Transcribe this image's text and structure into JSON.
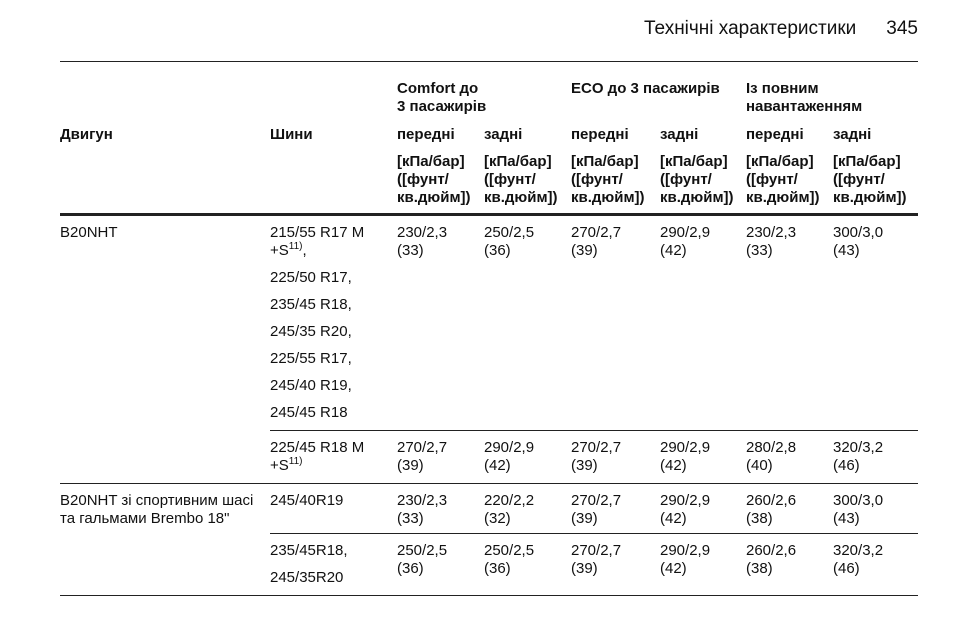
{
  "header": {
    "title": "Технічні характеристики",
    "page": "345"
  },
  "table": {
    "group_headers": [
      [
        "Comfort до",
        "3 пасажирів"
      ],
      [
        "ECO до 3 пасажирів"
      ],
      [
        "Із повним",
        "навантаженням"
      ]
    ],
    "columns": [
      "Двигун",
      "Шини",
      "передні",
      "задні",
      "передні",
      "задні",
      "передні",
      "задні"
    ],
    "units": [
      [
        "[кПа/бар]",
        "([фунт/",
        "кв.дюйм])"
      ],
      [
        "[кПа/бар]",
        "([фунт/",
        "кв.дюйм])"
      ],
      [
        "[кПа/бар]",
        "([фунт/",
        "кв.дюйм])"
      ],
      [
        "[кПа/бар]",
        "([фунт/",
        "кв.дюйм])"
      ],
      [
        "[кПа/бар]",
        "([фунт/",
        "кв.дюйм])"
      ],
      [
        "[кПа/бар]",
        "([фунт/",
        "кв.дюйм])"
      ]
    ],
    "rows": [
      {
        "engine": [
          "B20NHT"
        ],
        "tyres": [
          {
            "text": [
              "215/55 R17 M",
              "+S"
            ],
            "note": "11)",
            "suffix": ","
          },
          {
            "text": [
              "225/50 R17,"
            ]
          },
          {
            "text": [
              "235/45 R18,"
            ]
          },
          {
            "text": [
              "245/35 R20,"
            ]
          },
          {
            "text": [
              "225/55 R17,"
            ]
          },
          {
            "text": [
              "245/40 R19,"
            ]
          },
          {
            "text": [
              "245/45 R18"
            ]
          }
        ],
        "values": [
          [
            "230/2,3",
            "(33)"
          ],
          [
            "250/2,5",
            "(36)"
          ],
          [
            "270/2,7",
            "(39)"
          ],
          [
            "290/2,9",
            "(42)"
          ],
          [
            "230/2,3",
            "(33)"
          ],
          [
            "300/3,0",
            "(43)"
          ]
        ]
      },
      {
        "tyres": [
          {
            "text": [
              "225/45 R18 M",
              "+S"
            ],
            "note": "11)"
          }
        ],
        "values": [
          [
            "270/2,7",
            "(39)"
          ],
          [
            "290/2,9",
            "(42)"
          ],
          [
            "270/2,7",
            "(39)"
          ],
          [
            "290/2,9",
            "(42)"
          ],
          [
            "280/2,8",
            "(40)"
          ],
          [
            "320/3,2",
            "(46)"
          ]
        ]
      },
      {
        "engine": [
          "B20NHT зі спортивним шасі",
          "та гальмами Brembo 18\""
        ],
        "tyres": [
          {
            "text": [
              "245/40R19"
            ]
          }
        ],
        "values": [
          [
            "230/2,3",
            "(33)"
          ],
          [
            "220/2,2",
            "(32)"
          ],
          [
            "270/2,7",
            "(39)"
          ],
          [
            "290/2,9",
            "(42)"
          ],
          [
            "260/2,6",
            "(38)"
          ],
          [
            "300/3,0",
            "(43)"
          ]
        ]
      },
      {
        "tyres": [
          {
            "text": [
              "235/45R18,"
            ]
          },
          {
            "text": [
              "245/35R20"
            ]
          }
        ],
        "values": [
          [
            "250/2,5",
            "(36)"
          ],
          [
            "250/2,5",
            "(36)"
          ],
          [
            "270/2,7",
            "(39)"
          ],
          [
            "290/2,9",
            "(42)"
          ],
          [
            "260/2,6",
            "(38)"
          ],
          [
            "320/3,2",
            "(46)"
          ]
        ]
      }
    ]
  }
}
